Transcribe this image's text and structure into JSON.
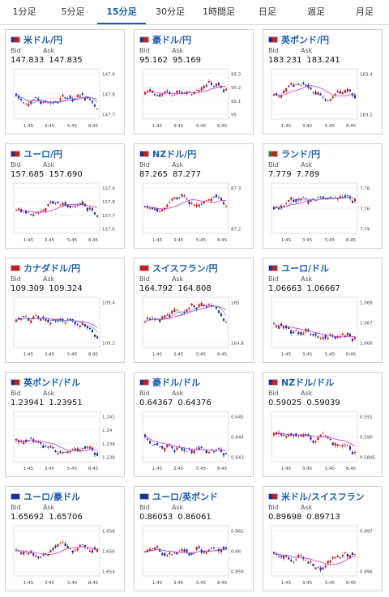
{
  "tabs": [
    "1分足",
    "5分足",
    "15分足",
    "30分足",
    "1時間足",
    "日足",
    "週足",
    "月足"
  ],
  "active_tab": 2,
  "bid_label": "Bid",
  "ask_label": "Ask",
  "x_ticks": [
    "1:45",
    "3:45",
    "5:45",
    "8:45"
  ],
  "colors": {
    "up": "#d11b1b",
    "down": "#1c2f9c",
    "ma": "#c832c8",
    "ma2": "#4a90e2",
    "accent": "#1a5fb4"
  },
  "pairs": [
    {
      "name": "米ドル/円",
      "bid": "147.833",
      "ask": "147.835",
      "flags": [
        "#1c2f9c",
        "#d11b1b"
      ],
      "yticks": [
        "147.9",
        "147.8",
        "147.7"
      ],
      "ma2": true
    },
    {
      "name": "豪ドル/円",
      "bid": "95.162",
      "ask": "95.169",
      "flags": [
        "#1c2f9c",
        "#d11b1b"
      ],
      "yticks": [
        "95.3",
        "95.2",
        "95.1",
        "95"
      ],
      "ma2": false
    },
    {
      "name": "英ポンド/円",
      "bid": "183.231",
      "ask": "183.241",
      "flags": [
        "#1c2f9c",
        "#d11b1b"
      ],
      "yticks": [
        "183.4",
        "183.2"
      ],
      "ma2": false
    },
    {
      "name": "ユーロ/円",
      "bid": "157.685",
      "ask": "157.690",
      "flags": [
        "#1c2f9c",
        "#d11b1b"
      ],
      "yticks": [
        "157.9",
        "157.8",
        "157.7",
        "157.6"
      ],
      "ma2": false
    },
    {
      "name": "NZドル/円",
      "bid": "87.265",
      "ask": "87.277",
      "flags": [
        "#1c2f9c",
        "#d11b1b"
      ],
      "yticks": [
        "87.3",
        "87.2"
      ],
      "ma2": false
    },
    {
      "name": "ランド/円",
      "bid": "7.779",
      "ask": "7.789",
      "flags": [
        "#2a7a2a",
        "#d11b1b"
      ],
      "yticks": [
        "7.78",
        "7.76",
        "7.74"
      ],
      "ma2": true
    },
    {
      "name": "カナダドル/円",
      "bid": "109.309",
      "ask": "109.324",
      "flags": [
        "#d11b1b",
        "#d11b1b"
      ],
      "yticks": [
        "109.4",
        "109.2"
      ],
      "ma2": true
    },
    {
      "name": "スイスフラン/円",
      "bid": "164.792",
      "ask": "164.808",
      "flags": [
        "#d11b1b",
        "#d11b1b"
      ],
      "yticks": [
        "165",
        "164.8"
      ],
      "ma2": true
    },
    {
      "name": "ユーロ/ドル",
      "bid": "1.06663",
      "ask": "1.06667",
      "flags": [
        "#1c2f9c",
        "#d11b1b"
      ],
      "yticks": [
        "1.068",
        "1.067",
        "1.066"
      ],
      "ma2": false
    },
    {
      "name": "英ポンド/ドル",
      "bid": "1.23941",
      "ask": "1.23951",
      "flags": [
        "#1c2f9c",
        "#d11b1b"
      ],
      "yticks": [
        "1.241",
        "1.24",
        "1.239",
        "1.238"
      ],
      "ma2": false
    },
    {
      "name": "豪ドル/ドル",
      "bid": "0.64367",
      "ask": "0.64376",
      "flags": [
        "#1c2f9c",
        "#d11b1b"
      ],
      "yticks": [
        "0.645",
        "0.644",
        "0.643"
      ],
      "ma2": false
    },
    {
      "name": "NZドル/ドル",
      "bid": "0.59025",
      "ask": "0.59039",
      "flags": [
        "#1c2f9c",
        "#d11b1b"
      ],
      "yticks": [
        "0.591",
        "0.590",
        "0.5895"
      ],
      "ma2": false
    },
    {
      "name": "ユーロ/豪ドル",
      "bid": "1.65692",
      "ask": "1.65706",
      "flags": [
        "#1c2f9c",
        "#1c2f9c"
      ],
      "yticks": [
        "1.658",
        "1.656",
        "1.654"
      ],
      "ma2": false
    },
    {
      "name": "ユーロ/英ポンド",
      "bid": "0.86053",
      "ask": "0.86061",
      "flags": [
        "#1c2f9c",
        "#1c2f9c"
      ],
      "yticks": [
        "0.861",
        "0.86",
        "0.859"
      ],
      "ma2": false
    },
    {
      "name": "米ドル/スイスフラン",
      "bid": "0.89698",
      "ask": "0.89713",
      "flags": [
        "#1c2f9c",
        "#d11b1b"
      ],
      "yticks": [
        "0.897",
        "0.896"
      ],
      "ma2": false
    }
  ]
}
